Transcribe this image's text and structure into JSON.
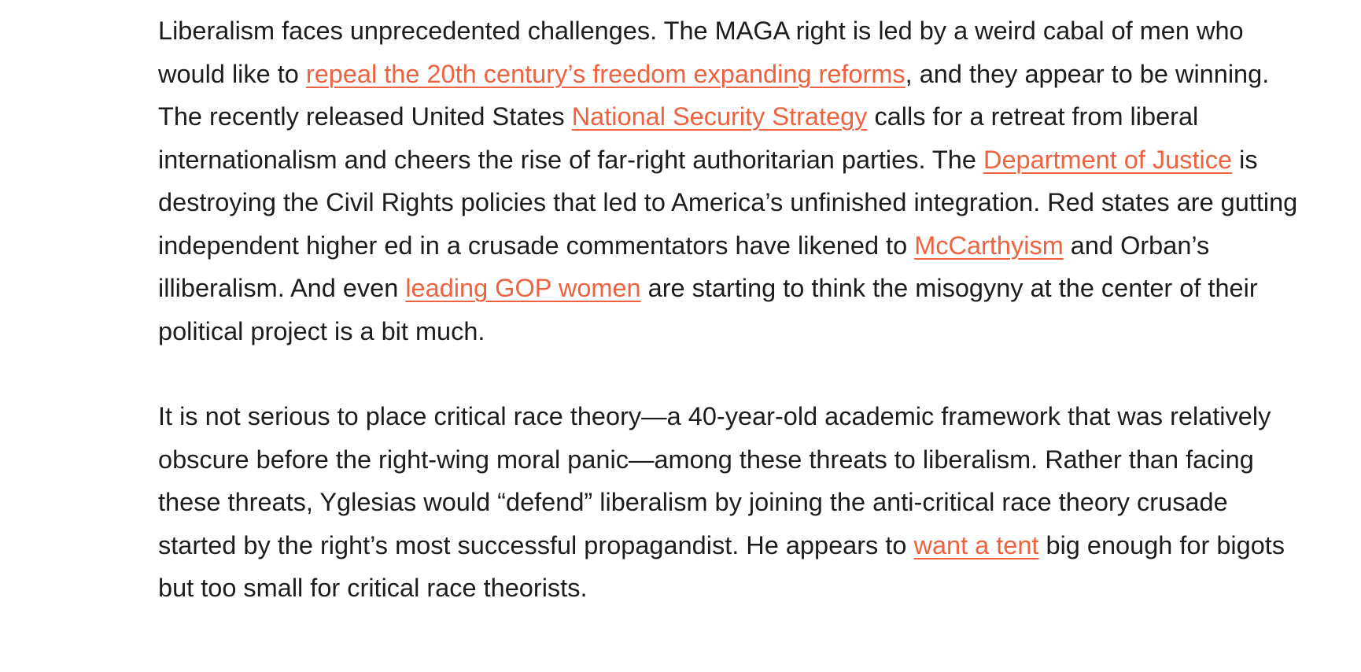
{
  "article": {
    "paragraphs": [
      [
        {
          "text": "Liberalism faces unprecedented challenges. The MAGA right is led by a weird cabal of men who would like to "
        },
        {
          "text": "repeal the 20th century’s freedom expanding reforms",
          "link": true
        },
        {
          "text": ", and they appear to be winning. The recently released United States "
        },
        {
          "text": "National Security Strategy",
          "link": true
        },
        {
          "text": " calls for a retreat from liberal internationalism and cheers the rise of far-right authoritarian parties. The "
        },
        {
          "text": "Department of Justice",
          "link": true
        },
        {
          "text": " is destroying the Civil Rights policies that led to America’s unfinished integration. Red states are gutting independent higher ed in a crusade commentators have likened to "
        },
        {
          "text": "McCarthyism",
          "link": true
        },
        {
          "text": " and Orban’s illiberalism. And even "
        },
        {
          "text": "leading GOP women",
          "link": true
        },
        {
          "text": " are starting to think the misogyny at the center of their political project is a bit much."
        }
      ],
      [
        {
          "text": "It is not serious to place critical race theory—a 40-year-old academic framework that was relatively obscure before the right-wing moral panic—among these threats to liberalism. Rather than facing these threats, Yglesias would “defend” liberalism by joining the anti-critical race theory crusade started by the right’s most successful propagandist. He appears to "
        },
        {
          "text": "want a tent",
          "link": true
        },
        {
          "text": " big enough for bigots but too small for critical race theorists."
        }
      ]
    ],
    "colors": {
      "text": "#1d1d1d",
      "link": "#ef6240",
      "background": "#ffffff"
    }
  }
}
